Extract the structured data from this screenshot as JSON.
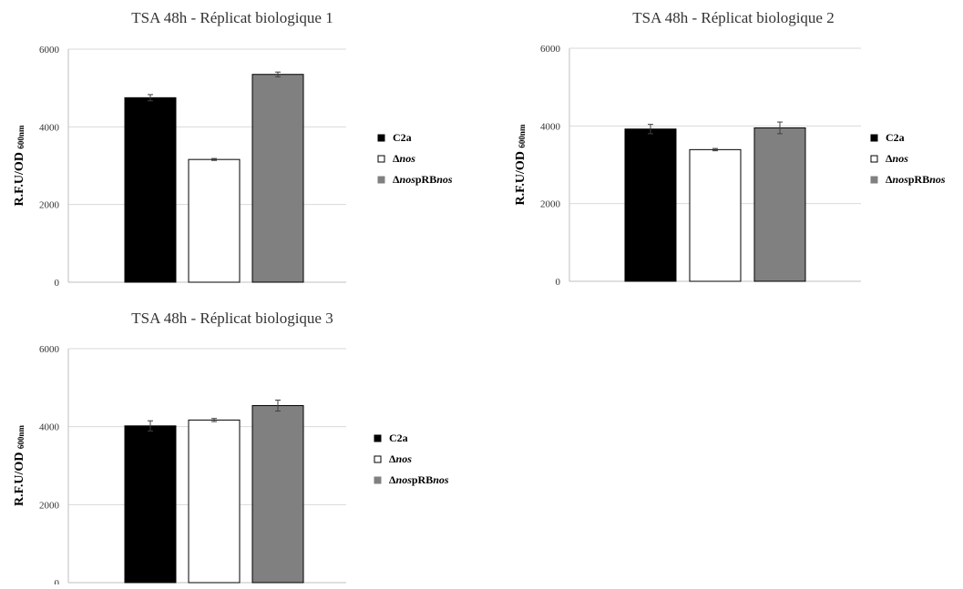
{
  "chart_data": [
    {
      "type": "bar",
      "title": "TSA 48h - Réplicat biologique 1",
      "ylabel": "R.F.U/OD",
      "ylabel_sub": "600nm",
      "ylim": [
        0,
        6000
      ],
      "yticks": [
        "0",
        "2000",
        "4000",
        "6000"
      ],
      "grid": true,
      "legend_position": "right",
      "categories": [
        "C2a",
        "Δnos",
        "ΔnospRBnos"
      ],
      "values": [
        4750,
        3160,
        5350
      ],
      "errors": [
        80,
        25,
        60
      ],
      "colors": [
        "#000000",
        "#ffffff",
        "#808080"
      ]
    },
    {
      "type": "bar",
      "title": "TSA 48h - Réplicat biologique 2",
      "ylabel": "R.F.U/OD",
      "ylabel_sub": "600nm",
      "ylim": [
        0,
        6000
      ],
      "yticks": [
        "0",
        "2000",
        "4000",
        "6000"
      ],
      "grid": true,
      "legend_position": "right",
      "categories": [
        "C2a",
        "Δnos",
        "ΔnospRBnos"
      ],
      "values": [
        3920,
        3390,
        3950
      ],
      "errors": [
        120,
        30,
        150
      ],
      "colors": [
        "#000000",
        "#ffffff",
        "#808080"
      ]
    },
    {
      "type": "bar",
      "title": "TSA 48h - Réplicat biologique 3",
      "ylabel": "R.F.U/OD",
      "ylabel_sub": "600nm",
      "ylim": [
        0,
        6000
      ],
      "yticks": [
        "0",
        "2000",
        "4000",
        "6000"
      ],
      "grid": true,
      "legend_position": "right",
      "categories": [
        "C2a",
        "Δnos",
        "ΔnospRBnos"
      ],
      "values": [
        4020,
        4170,
        4540
      ],
      "errors": [
        130,
        40,
        140
      ],
      "colors": [
        "#000000",
        "#ffffff",
        "#808080"
      ]
    }
  ],
  "legend": {
    "items": [
      {
        "prefix": "C2a",
        "italic": "",
        "suffix": "",
        "color": "#000000"
      },
      {
        "prefix": "Δ",
        "italic": "nos",
        "suffix": "",
        "color": "#ffffff"
      },
      {
        "prefix": "Δ",
        "italic": "nos",
        "suffix": "pRB",
        "italic2": "nos",
        "color": "#808080"
      }
    ]
  }
}
